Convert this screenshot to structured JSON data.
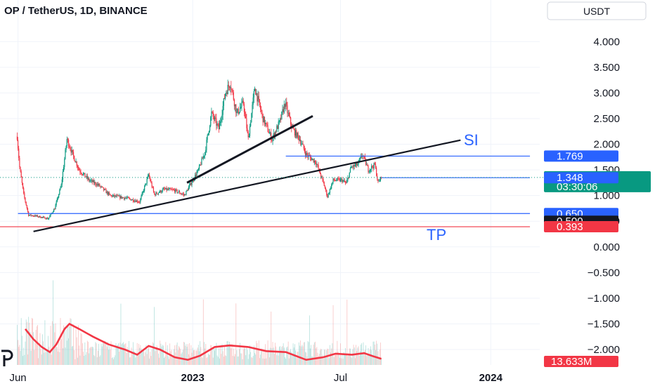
{
  "header": {
    "title": "OP / TetherUS, 1D, BINANCE"
  },
  "currency_button": {
    "label": "USDT"
  },
  "logo": {
    "label": "tradingview-logo"
  },
  "annotations": {
    "si": "SI",
    "tp": "TP"
  },
  "price_tags": [
    {
      "label": "1.769",
      "value": 1.769,
      "color": "#2962ff"
    },
    {
      "label": "1.352",
      "value": 1.352,
      "color": "#089981",
      "subtext": "03:30:06"
    },
    {
      "label": "1.348",
      "value": 1.348,
      "color": "#2962ff"
    },
    {
      "label": "0.650",
      "value": 0.65,
      "color": "#2962ff"
    },
    {
      "label": "0.500",
      "value": 0.5,
      "color": "#131722"
    },
    {
      "label": "0.393",
      "value": 0.393,
      "color": "#f23645"
    }
  ],
  "volume_tag": {
    "label": "13.633M",
    "color": "#f23645"
  },
  "colors": {
    "up": "#089981",
    "down": "#f23645",
    "blue": "#2962ff",
    "axis_text": "#131722",
    "grid": "#f0f3fa"
  },
  "chart_data": {
    "type": "line",
    "title": "OP / TetherUS, 1D, BINANCE",
    "yunit": "USDT",
    "y_ticks": [
      "4.000",
      "3.500",
      "3.000",
      "2.500",
      "2.000",
      "1.500",
      "1.000",
      "0.500",
      "0.000",
      "−0.500",
      "−1.000",
      "−1.500",
      "−2.000"
    ],
    "y_tick_values": [
      4,
      3.5,
      3,
      2.5,
      2,
      1.5,
      1,
      0.5,
      0,
      -0.5,
      -1,
      -1.5,
      -2
    ],
    "ylim": [
      -2.3,
      4.4
    ],
    "x_ticks": [
      "Jun",
      "2023",
      "Jul",
      "2024"
    ],
    "x_tick_dates": [
      "2022-06-01",
      "2023-01-01",
      "2023-07-01",
      "2024-01-01"
    ],
    "xlim": [
      "2022-05-10",
      "2024-03-01"
    ],
    "last_date": "2023-08-20",
    "price_series": {
      "name": "OP",
      "points": [
        [
          "2022-05-31",
          2.15
        ],
        [
          "2022-06-03",
          1.55
        ],
        [
          "2022-06-08",
          1.02
        ],
        [
          "2022-06-14",
          0.62
        ],
        [
          "2022-06-24",
          0.6
        ],
        [
          "2022-07-08",
          0.55
        ],
        [
          "2022-07-16",
          0.75
        ],
        [
          "2022-07-24",
          1.2
        ],
        [
          "2022-07-31",
          2.1
        ],
        [
          "2022-08-07",
          1.8
        ],
        [
          "2022-08-15",
          1.5
        ],
        [
          "2022-08-27",
          1.3
        ],
        [
          "2022-09-08",
          1.2
        ],
        [
          "2022-09-22",
          1.0
        ],
        [
          "2022-10-12",
          0.95
        ],
        [
          "2022-10-28",
          0.88
        ],
        [
          "2022-11-08",
          1.4
        ],
        [
          "2022-11-15",
          1.02
        ],
        [
          "2022-11-27",
          1.12
        ],
        [
          "2022-12-10",
          1.1
        ],
        [
          "2022-12-22",
          1.01
        ],
        [
          "2023-01-01",
          1.3
        ],
        [
          "2023-01-08",
          1.5
        ],
        [
          "2023-01-16",
          1.85
        ],
        [
          "2023-01-24",
          2.6
        ],
        [
          "2023-02-02",
          2.3
        ],
        [
          "2023-02-10",
          3.0
        ],
        [
          "2023-02-16",
          3.2
        ],
        [
          "2023-02-24",
          2.6
        ],
        [
          "2023-03-04",
          2.8
        ],
        [
          "2023-03-10",
          2.1
        ],
        [
          "2023-03-18",
          3.1
        ],
        [
          "2023-03-28",
          2.5
        ],
        [
          "2023-04-08",
          2.1
        ],
        [
          "2023-04-18",
          2.45
        ],
        [
          "2023-04-24",
          2.8
        ],
        [
          "2023-05-03",
          2.3
        ],
        [
          "2023-05-12",
          2.1
        ],
        [
          "2023-05-20",
          1.8
        ],
        [
          "2023-06-01",
          1.65
        ],
        [
          "2023-06-10",
          1.25
        ],
        [
          "2023-06-15",
          0.98
        ],
        [
          "2023-06-22",
          1.3
        ],
        [
          "2023-07-03",
          1.3
        ],
        [
          "2023-07-08",
          1.23
        ],
        [
          "2023-07-14",
          1.55
        ],
        [
          "2023-07-22",
          1.6
        ],
        [
          "2023-07-28",
          1.8
        ],
        [
          "2023-08-04",
          1.5
        ],
        [
          "2023-08-12",
          1.6
        ],
        [
          "2023-08-16",
          1.25
        ],
        [
          "2023-08-20",
          1.352
        ]
      ]
    },
    "volume_series": {
      "name": "Volume",
      "last_label": "13.633M"
    },
    "volume_ma_series": {
      "name": "Volume MA",
      "points": [
        [
          "2022-06-10",
          -1.6
        ],
        [
          "2022-06-20",
          -1.8
        ],
        [
          "2022-06-30",
          -1.95
        ],
        [
          "2022-07-10",
          -2.05
        ],
        [
          "2022-07-18",
          -1.9
        ],
        [
          "2022-07-28",
          -1.6
        ],
        [
          "2022-08-03",
          -1.5
        ],
        [
          "2022-08-15",
          -1.6
        ],
        [
          "2022-09-01",
          -1.75
        ],
        [
          "2022-09-20",
          -1.9
        ],
        [
          "2022-10-10",
          -2.0
        ],
        [
          "2022-10-25",
          -2.1
        ],
        [
          "2022-11-08",
          -1.93
        ],
        [
          "2022-11-22",
          -2.0
        ],
        [
          "2022-12-10",
          -2.15
        ],
        [
          "2022-12-26",
          -2.2
        ],
        [
          "2023-01-10",
          -2.12
        ],
        [
          "2023-01-28",
          -1.95
        ],
        [
          "2023-02-15",
          -1.92
        ],
        [
          "2023-03-10",
          -1.95
        ],
        [
          "2023-04-01",
          -2.03
        ],
        [
          "2023-04-25",
          -2.05
        ],
        [
          "2023-05-20",
          -2.2
        ],
        [
          "2023-06-10",
          -2.15
        ],
        [
          "2023-06-25",
          -2.08
        ],
        [
          "2023-07-15",
          -2.1
        ],
        [
          "2023-07-30",
          -2.07
        ],
        [
          "2023-08-10",
          -2.13
        ],
        [
          "2023-08-20",
          -2.18
        ]
      ]
    },
    "trendlines": [
      {
        "color": "#131722",
        "from": [
          "2022-06-20",
          0.3
        ],
        "to": [
          "2023-11-25",
          2.08
        ]
      },
      {
        "color": "#131722",
        "from": [
          "2022-12-25",
          1.25
        ],
        "to": [
          "2023-05-28",
          2.55
        ]
      }
    ],
    "horizontal_segments": [
      {
        "color": "#2962ff",
        "y": 1.769,
        "from": "2023-04-25",
        "to": "2024-02-18"
      },
      {
        "color": "#2962ff",
        "y": 1.348,
        "from": "2023-08-20",
        "to": "2024-02-18"
      },
      {
        "color": "#2962ff",
        "y": 0.65,
        "from": "2022-06-01",
        "to": "2024-02-18"
      },
      {
        "color": "#f23645",
        "y": 0.393,
        "from": "2022-05-10",
        "to": "2024-02-18"
      }
    ],
    "current_price_line": {
      "color": "#089981",
      "y": 1.352
    }
  }
}
